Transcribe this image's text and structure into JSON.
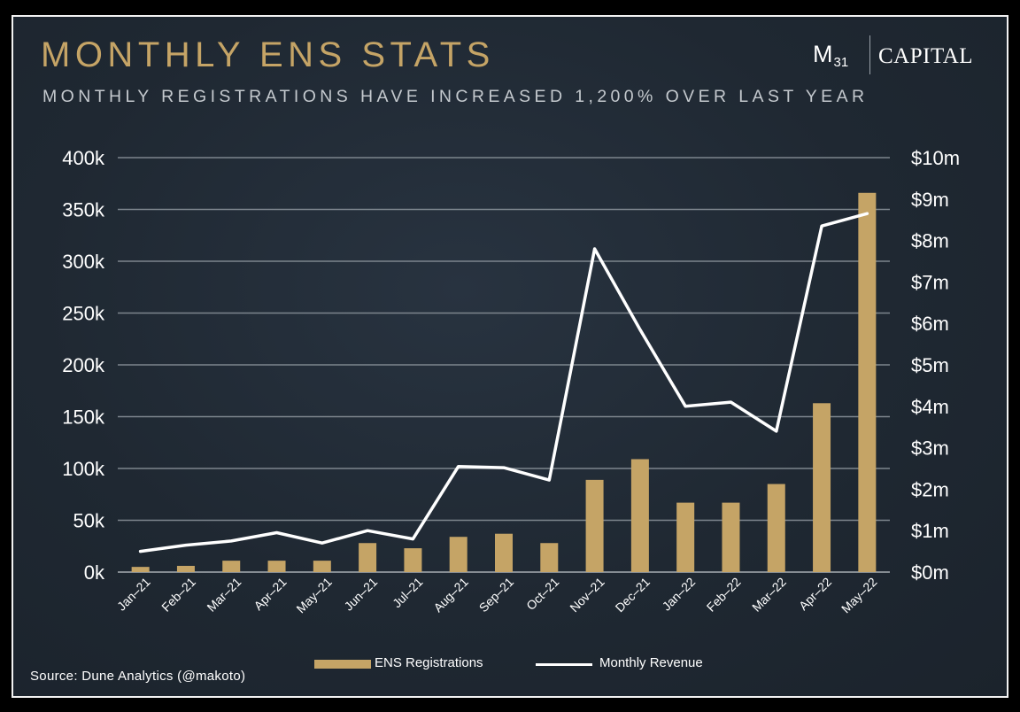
{
  "header": {
    "title": "MONTHLY ENS STATS",
    "subtitle": "MONTHLY REGISTRATIONS HAVE INCREASED 1,200% OVER LAST YEAR"
  },
  "logo": {
    "mark": "M",
    "mark_sub": "31",
    "wordmark": "CAPITAL"
  },
  "source": "Source: Dune Analytics (@makoto)",
  "colors": {
    "bar": "#c5a466",
    "line": "#ffffff",
    "grid": "#7d858d",
    "text": "#ffffff"
  },
  "chart_data": {
    "type": "bar+line",
    "title": "MONTHLY ENS STATS",
    "categories": [
      "Jan–21",
      "Feb–21",
      "Mar–21",
      "Apr–21",
      "May–21",
      "Jun–21",
      "Jul–21",
      "Aug–21",
      "Sep–21",
      "Oct–21",
      "Nov–21",
      "Dec–21",
      "Jan–22",
      "Feb–22",
      "Mar–22",
      "Apr–22",
      "May–22"
    ],
    "series": [
      {
        "name": "ENS Registrations",
        "type": "bar",
        "axis": "left",
        "values": [
          5000,
          6000,
          11000,
          11000,
          11000,
          28000,
          23000,
          34000,
          37000,
          28000,
          89000,
          109000,
          67000,
          67000,
          85000,
          163000,
          366000
        ]
      },
      {
        "name": "Monthly Revenue",
        "type": "line",
        "axis": "right",
        "values": [
          0.5,
          0.65,
          0.75,
          0.95,
          0.7,
          1.0,
          0.8,
          2.55,
          2.52,
          2.22,
          7.8,
          5.85,
          4.0,
          4.1,
          3.4,
          8.35,
          8.65
        ]
      }
    ],
    "y_left": {
      "range": [
        0,
        400000
      ],
      "ticks": [
        0,
        50000,
        100000,
        150000,
        200000,
        250000,
        300000,
        350000,
        400000
      ],
      "tick_labels": [
        "0k",
        "50k",
        "100k",
        "150k",
        "200k",
        "250k",
        "300k",
        "350k",
        "400k"
      ]
    },
    "y_right": {
      "range": [
        0,
        10
      ],
      "ticks": [
        0,
        1,
        2,
        3,
        4,
        5,
        6,
        7,
        8,
        9,
        10
      ],
      "tick_labels": [
        "$0m",
        "$1m",
        "$2m",
        "$3m",
        "$4m",
        "$5m",
        "$6m",
        "$7m",
        "$8m",
        "$9m",
        "$10m"
      ]
    },
    "grid": true,
    "legend_position": "bottom-center"
  }
}
